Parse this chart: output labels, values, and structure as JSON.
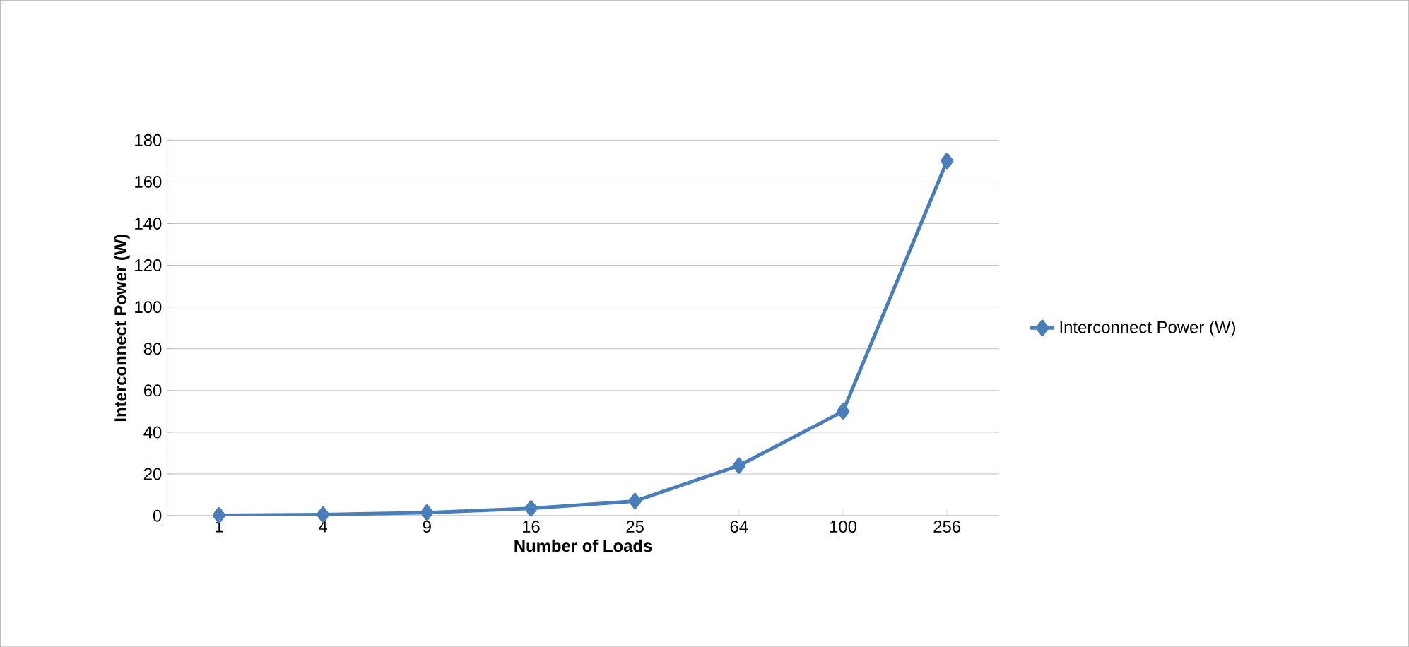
{
  "chart_data": {
    "type": "line",
    "xlabel": "Number of Loads",
    "ylabel": "Interconnect Power (W)",
    "categories": [
      "1",
      "4",
      "9",
      "16",
      "25",
      "64",
      "100",
      "256"
    ],
    "series": [
      {
        "name": "Interconnect Power (W)",
        "color": "#4a7ebb",
        "values": [
          0.2,
          0.5,
          1.5,
          3.5,
          7,
          24,
          50,
          170
        ]
      }
    ],
    "ylim": [
      0,
      180
    ],
    "yticks": [
      0,
      20,
      40,
      60,
      80,
      100,
      120,
      140,
      160,
      180
    ],
    "grid": "y",
    "legend": "right",
    "marker": "diamond",
    "line_style": "solid"
  }
}
